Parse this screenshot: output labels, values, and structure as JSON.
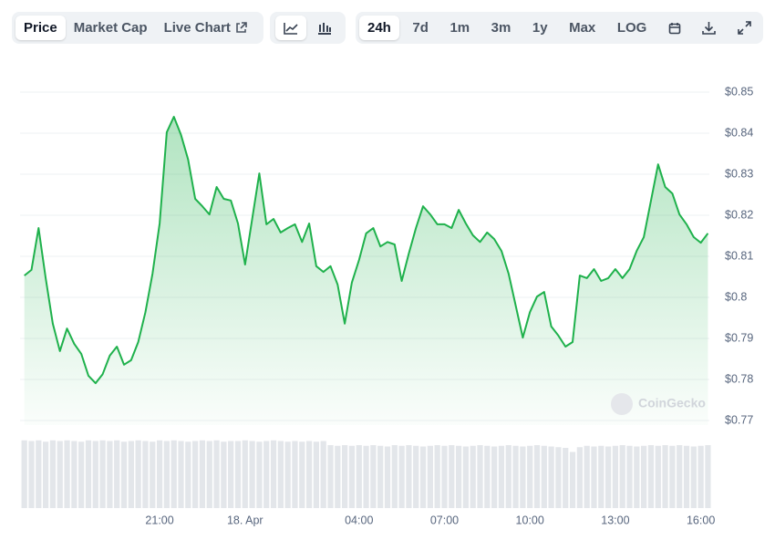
{
  "toolbar": {
    "tabs": [
      "Price",
      "Market Cap",
      "Live Chart"
    ],
    "ranges": [
      "24h",
      "7d",
      "1m",
      "3m",
      "1y",
      "Max",
      "LOG"
    ]
  },
  "watermark": "CoinGecko",
  "chart_data": {
    "type": "line",
    "color": "#1fb14c",
    "grid": true,
    "x": [
      -7.75,
      -7.5,
      -7.25,
      -7,
      -6.75,
      -6.5,
      -6.25,
      -6,
      -5.75,
      -5.5,
      -5.25,
      -5,
      -4.75,
      -4.5,
      -4.25,
      -4,
      -3.75,
      -3.5,
      -3.25,
      -3,
      -2.75,
      -2.5,
      -2.25,
      -2,
      -1.75,
      -1.5,
      -1.25,
      -1,
      -0.75,
      -0.5,
      -0.25,
      0,
      0.25,
      0.5,
      0.75,
      1,
      1.25,
      1.5,
      1.75,
      2,
      2.25,
      2.5,
      2.75,
      3,
      3.25,
      3.5,
      3.75,
      4,
      4.25,
      4.5,
      4.75,
      5,
      5.25,
      5.5,
      5.75,
      6,
      6.25,
      6.5,
      6.75,
      7,
      7.25,
      7.5,
      7.75,
      8,
      8.25,
      8.5,
      8.75,
      9,
      9.25,
      9.5,
      9.75,
      10,
      10.25,
      10.5,
      10.75,
      11,
      11.25,
      11.5,
      11.75,
      12,
      12.25,
      12.5,
      12.75,
      13,
      13.25,
      13.5,
      13.75,
      14,
      14.25,
      14.5,
      14.75,
      15,
      15.25,
      15.5,
      15.75,
      16,
      16.25
    ],
    "values": [
      0.8053,
      0.8067,
      0.8169,
      0.8047,
      0.7936,
      0.7869,
      0.7924,
      0.7887,
      0.7862,
      0.7809,
      0.7791,
      0.7813,
      0.7858,
      0.788,
      0.7836,
      0.7847,
      0.7891,
      0.7964,
      0.8058,
      0.818,
      0.8402,
      0.844,
      0.8396,
      0.8336,
      0.824,
      0.8222,
      0.8202,
      0.8269,
      0.824,
      0.8236,
      0.818,
      0.808,
      0.8191,
      0.8302,
      0.8178,
      0.8191,
      0.8158,
      0.8169,
      0.8178,
      0.8135,
      0.818,
      0.8076,
      0.8062,
      0.8076,
      0.8031,
      0.7936,
      0.8036,
      0.8091,
      0.8156,
      0.8169,
      0.8124,
      0.8135,
      0.8129,
      0.804,
      0.8107,
      0.8169,
      0.8222,
      0.8202,
      0.8178,
      0.8178,
      0.8169,
      0.8213,
      0.818,
      0.8151,
      0.8135,
      0.8158,
      0.8142,
      0.8113,
      0.8058,
      0.798,
      0.7902,
      0.7964,
      0.8002,
      0.8013,
      0.7929,
      0.7907,
      0.788,
      0.7891,
      0.8053,
      0.8047,
      0.8069,
      0.804,
      0.8047,
      0.8069,
      0.8047,
      0.8069,
      0.8113,
      0.8147,
      0.8236,
      0.8324,
      0.8269,
      0.8253,
      0.8202,
      0.8178,
      0.8147,
      0.8133,
      0.8156
    ],
    "xlim": [
      -7.9,
      16.3
    ],
    "ylim": [
      0.77,
      0.85
    ],
    "xticks": [
      {
        "value": -3,
        "label": "21:00"
      },
      {
        "value": 0,
        "label": "18. Apr"
      },
      {
        "value": 4,
        "label": "04:00"
      },
      {
        "value": 7,
        "label": "07:00"
      },
      {
        "value": 10,
        "label": "10:00"
      },
      {
        "value": 13,
        "label": "13:00"
      },
      {
        "value": 16,
        "label": "16:00"
      }
    ],
    "yticks": [
      {
        "value": 0.77,
        "label": "$0.77"
      },
      {
        "value": 0.78,
        "label": "$0.78"
      },
      {
        "value": 0.79,
        "label": "$0.79"
      },
      {
        "value": 0.8,
        "label": "$0.8"
      },
      {
        "value": 0.81,
        "label": "$0.81"
      },
      {
        "value": 0.82,
        "label": "$0.82"
      },
      {
        "value": 0.83,
        "label": "$0.83"
      },
      {
        "value": 0.84,
        "label": "$0.84"
      },
      {
        "value": 0.85,
        "label": "$0.85"
      }
    ],
    "volume": {
      "color": "#e3e6ea",
      "lim": [
        0,
        100
      ],
      "values": [
        99,
        98,
        99,
        97,
        99,
        98,
        99,
        98,
        97,
        99,
        98,
        99,
        98,
        99,
        97,
        98,
        99,
        98,
        97,
        99,
        98,
        99,
        98,
        97,
        98,
        99,
        98,
        99,
        97,
        98,
        98,
        99,
        98,
        97,
        98,
        99,
        98,
        97,
        98,
        97,
        98,
        97,
        98,
        92,
        91,
        92,
        91,
        92,
        91,
        92,
        91,
        90,
        92,
        91,
        92,
        91,
        90,
        91,
        92,
        91,
        92,
        91,
        90,
        91,
        92,
        91,
        90,
        91,
        92,
        91,
        90,
        91,
        92,
        91,
        90,
        89,
        88,
        82,
        89,
        91,
        90,
        91,
        90,
        91,
        92,
        91,
        90,
        91,
        92,
        91,
        92,
        91,
        92,
        91,
        90,
        91,
        92
      ]
    }
  }
}
